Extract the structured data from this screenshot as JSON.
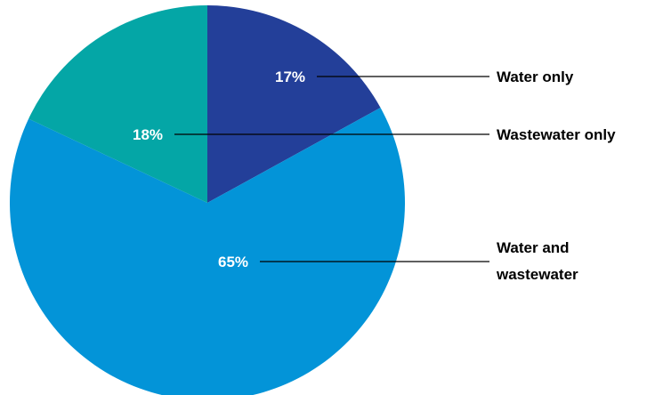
{
  "chart_data": {
    "type": "pie",
    "slices": [
      {
        "name": "Water only",
        "value": 17,
        "label": "17%",
        "label_lines": [
          "Water only"
        ],
        "color": "#233f99"
      },
      {
        "name": "Water and wastewater",
        "value": 65,
        "label": "65%",
        "label_lines": [
          "Water and",
          "wastewater"
        ],
        "color": "#0394d8"
      },
      {
        "name": "Wastewater only",
        "value": 18,
        "label": "18%",
        "label_lines": [
          "Wastewater only"
        ],
        "color": "#04a6a6"
      }
    ],
    "start": "12 o'clock",
    "direction": "clockwise",
    "legend": "right, connected to slices by leader lines"
  }
}
